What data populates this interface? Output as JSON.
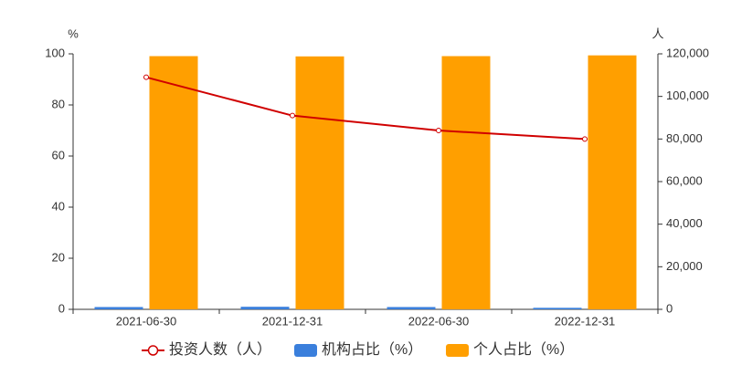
{
  "chart_data": {
    "type": "bar-line",
    "y_label": "%",
    "y2_label": "人",
    "categories": [
      "2021-06-30",
      "2021-12-31",
      "2022-06-30",
      "2022-12-31"
    ],
    "series": [
      {
        "name": "投资人数（人）",
        "type": "line",
        "axis": "y2",
        "color": "#d00000",
        "values": [
          109000,
          91000,
          84000,
          80000
        ]
      },
      {
        "name": "机构占比（%）",
        "type": "bar",
        "color": "#3a7fdc",
        "values": [
          0.9,
          1.0,
          0.9,
          0.6
        ]
      },
      {
        "name": "个人占比（%）",
        "type": "bar",
        "color": "#ff9f00",
        "values": [
          99.1,
          99.0,
          99.1,
          99.4
        ]
      }
    ],
    "ylim": [
      0,
      100
    ],
    "yticks": [
      0,
      20,
      40,
      60,
      80,
      100
    ],
    "y2lim": [
      0,
      120000
    ],
    "y2ticks": [
      0,
      {
        "value": 20000,
        "label": "20,000"
      },
      {
        "value": 40000,
        "label": "40,000"
      },
      {
        "value": 60000,
        "label": "60,000"
      },
      {
        "value": 80000,
        "label": "80,000"
      },
      {
        "value": 100000,
        "label": "100,000"
      },
      {
        "value": 120000,
        "label": "120,000"
      }
    ]
  }
}
